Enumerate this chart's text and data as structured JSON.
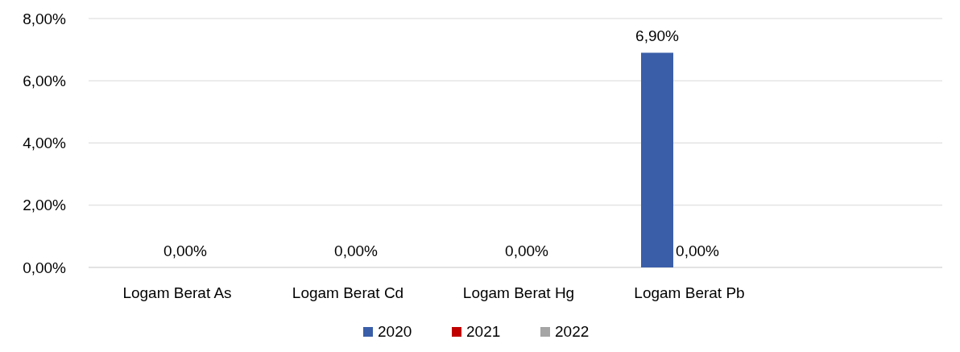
{
  "chart_data": {
    "type": "bar",
    "categories": [
      "Logam Berat As",
      "Logam Berat Cd",
      "Logam Berat Hg",
      "Logam Berat Pb",
      null
    ],
    "series": [
      {
        "name": "2020",
        "color": "#3a5ea8",
        "values": [
          null,
          null,
          null,
          6.9,
          null
        ],
        "value_labels": [
          null,
          null,
          null,
          "6,90%",
          null
        ]
      },
      {
        "name": "2021",
        "color": "#c00000",
        "values": [
          0,
          0,
          0,
          0,
          null
        ],
        "value_labels": [
          "0,00%",
          "0,00%",
          "0,00%",
          "0,00%",
          null
        ]
      },
      {
        "name": "2022",
        "color": "#a5a5a5",
        "values": [
          null,
          null,
          null,
          null,
          null
        ],
        "value_labels": [
          null,
          null,
          null,
          null,
          null
        ]
      }
    ],
    "ylim": [
      0,
      8
    ],
    "yticks": [
      {
        "value": 0,
        "label": "0,00%"
      },
      {
        "value": 2,
        "label": "2,00%"
      },
      {
        "value": 4,
        "label": "4,00%"
      },
      {
        "value": 6,
        "label": "6,00%"
      },
      {
        "value": 8,
        "label": "8,00%"
      }
    ],
    "grid": "y",
    "legend": "bottom"
  }
}
